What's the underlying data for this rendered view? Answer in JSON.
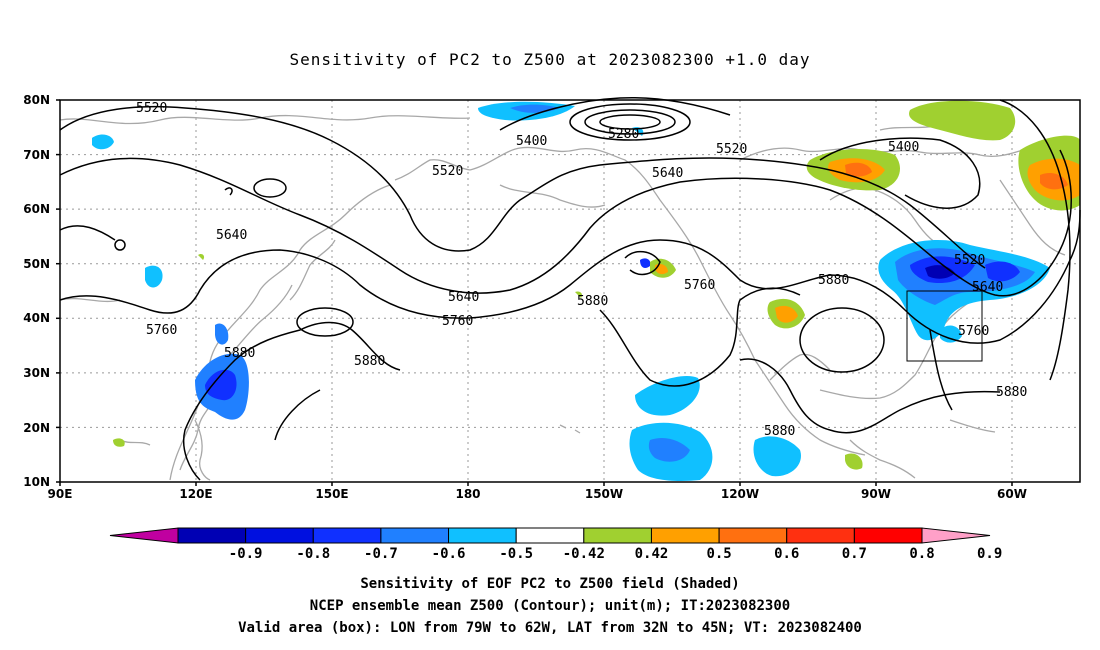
{
  "title": "Sensitivity of PC2 to Z500 at 2023082300 +1.0 day",
  "map": {
    "lat_labels": [
      "80N",
      "70N",
      "60N",
      "50N",
      "40N",
      "30N",
      "20N",
      "10N"
    ],
    "lon_labels": [
      "90E",
      "120E",
      "150E",
      "180",
      "150W",
      "120W",
      "90W",
      "60W"
    ],
    "contour_labels": [
      {
        "id": "c1",
        "text": "5520"
      },
      {
        "id": "c2",
        "text": "5400"
      },
      {
        "id": "c3",
        "text": "5280"
      },
      {
        "id": "c4",
        "text": "5520"
      },
      {
        "id": "c5",
        "text": "5520"
      },
      {
        "id": "c6",
        "text": "5640"
      },
      {
        "id": "c7",
        "text": "5400"
      },
      {
        "id": "c8",
        "text": "5640"
      },
      {
        "id": "c9",
        "text": "5640"
      },
      {
        "id": "c10",
        "text": "5760"
      },
      {
        "id": "c11",
        "text": "5880"
      },
      {
        "id": "c12",
        "text": "5760"
      },
      {
        "id": "c13",
        "text": "5880"
      },
      {
        "id": "c14",
        "text": "5880"
      },
      {
        "id": "c15",
        "text": "5760"
      },
      {
        "id": "c16",
        "text": "5880"
      },
      {
        "id": "c17",
        "text": "5520"
      },
      {
        "id": "c18",
        "text": "5640"
      },
      {
        "id": "c19",
        "text": "5760"
      },
      {
        "id": "c20",
        "text": "5880"
      },
      {
        "id": "c21",
        "text": "5880"
      }
    ],
    "valid_box": {
      "lon_range": [
        "79W",
        "62W"
      ],
      "lat_range": [
        "32N",
        "45N"
      ]
    }
  },
  "colorbar": {
    "labels": [
      "-0.9",
      "-0.8",
      "-0.7",
      "-0.6",
      "-0.5",
      "-0.42",
      "0.42",
      "0.5",
      "0.6",
      "0.7",
      "0.8",
      "0.9"
    ],
    "colors": [
      "#c000a0",
      "#0000b4",
      "#0010e0",
      "#1030ff",
      "#2080ff",
      "#10c0ff",
      "#ffffff",
      "#a0d030",
      "#ffa000",
      "#ff7010",
      "#ff3010",
      "#ff0000",
      "#ffa0c8"
    ]
  },
  "footer": {
    "line1": "Sensitivity of EOF PC2 to Z500 field (Shaded)",
    "line2": "NCEP ensemble mean Z500 (Contour); unit(m); IT:2023082300",
    "line3": "Valid area (box): LON from 79W to 62W, LAT from 32N to 45N; VT: 2023082400"
  }
}
